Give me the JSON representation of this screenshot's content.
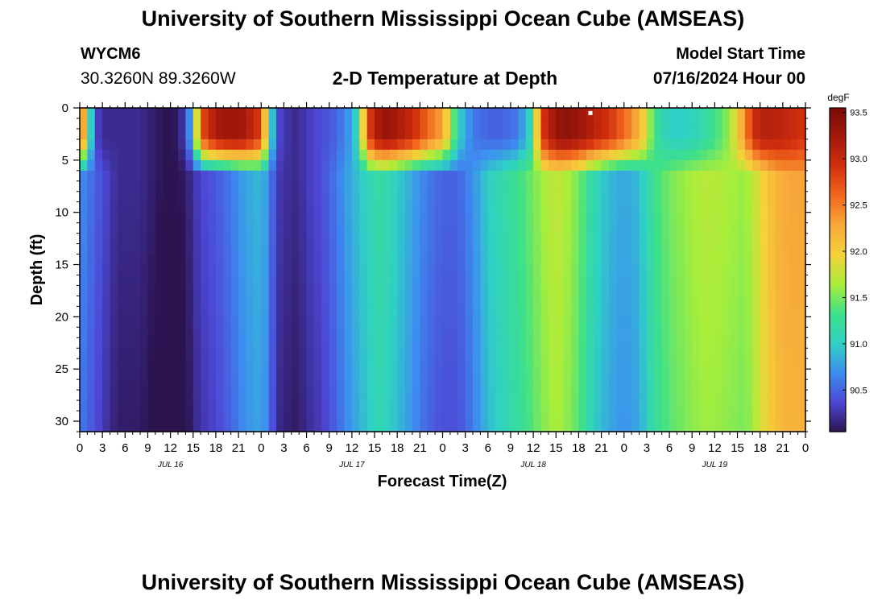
{
  "header": {
    "title": "University of Southern Mississippi Ocean Cube (AMSEAS)",
    "station": "WYCM6",
    "coordinates": "30.3260N  89.3260W",
    "subtitle": "2-D Temperature at Depth",
    "model_start_label": "Model Start Time",
    "model_start_value": "07/16/2024 Hour 00"
  },
  "footer": {
    "title": "University of Southern Mississippi Ocean Cube (AMSEAS)"
  },
  "chart_data": {
    "type": "heatmap",
    "xlabel": "Forecast Time(Z)",
    "ylabel": "Depth (ft)",
    "x_range_hours": [
      0,
      96
    ],
    "y_range_ft": [
      0,
      31
    ],
    "x_tick_labels": [
      "0",
      "3",
      "6",
      "9",
      "12",
      "15",
      "18",
      "21",
      "0",
      "3",
      "6",
      "9",
      "12",
      "15",
      "18",
      "21",
      "0",
      "3",
      "6",
      "9",
      "12",
      "15",
      "18",
      "21",
      "0",
      "3",
      "6",
      "9",
      "12",
      "15",
      "18",
      "21",
      "0"
    ],
    "y_ticks": [
      0,
      5,
      10,
      15,
      20,
      25,
      30
    ],
    "day_labels": [
      {
        "label": "JUL 16",
        "hour": 12
      },
      {
        "label": "JUL 17",
        "hour": 36
      },
      {
        "label": "JUL 18",
        "hour": 60
      },
      {
        "label": "JUL 19",
        "hour": 84
      }
    ],
    "colorbar": {
      "unit": "degF",
      "min": 90.05,
      "max": 93.55,
      "ticks": [
        "93.5",
        "93.0",
        "92.5",
        "92.0",
        "91.5",
        "91.0",
        "90.5"
      ],
      "colors": [
        "#2c1451",
        "#4d47d6",
        "#3d8ef0",
        "#2fd1c4",
        "#3ee089",
        "#a8ee3a",
        "#f5d13a",
        "#f7a93a",
        "#f2681e",
        "#d2300e",
        "#a4190b",
        "#7a0a07"
      ]
    },
    "temperature_profiles": {
      "times_h": [
        0,
        1,
        2,
        3,
        4,
        5,
        6,
        8,
        10,
        11,
        12,
        13,
        14,
        15,
        16,
        18,
        20,
        22,
        24,
        25,
        26,
        27,
        28,
        29,
        30,
        32,
        34,
        36,
        37,
        38,
        39,
        40,
        41,
        42,
        44,
        46,
        48,
        50,
        51,
        52,
        53,
        54,
        56,
        58,
        60,
        61,
        62,
        63,
        64,
        66,
        68,
        70,
        72,
        74,
        75,
        76,
        78,
        80,
        82,
        84,
        86,
        88,
        89,
        90,
        92,
        94,
        96
      ],
      "surface_degF": [
        92.9,
        91.6,
        90.4,
        90.2,
        90.2,
        90.2,
        90.2,
        90.2,
        90.1,
        90.05,
        90.05,
        90.1,
        90.35,
        91.0,
        92.7,
        93.2,
        93.3,
        93.2,
        92.8,
        91.4,
        90.4,
        90.3,
        90.2,
        90.2,
        90.3,
        90.4,
        90.5,
        90.8,
        91.2,
        92.7,
        93.1,
        93.3,
        93.3,
        93.2,
        93.0,
        92.6,
        92.3,
        91.1,
        90.8,
        90.6,
        90.55,
        90.5,
        90.5,
        90.6,
        91.2,
        92.8,
        93.1,
        93.3,
        93.4,
        93.3,
        93.1,
        92.9,
        92.6,
        92.2,
        91.8,
        91.3,
        91.0,
        91.0,
        91.1,
        91.3,
        91.6,
        92.4,
        92.9,
        93.1,
        93.1,
        93.0,
        92.9
      ],
      "mid_degF": [
        90.7,
        90.6,
        90.5,
        90.4,
        90.3,
        90.2,
        90.2,
        90.2,
        90.1,
        90.05,
        90.05,
        90.05,
        90.1,
        90.25,
        90.35,
        90.45,
        90.6,
        90.8,
        90.9,
        90.7,
        90.3,
        90.25,
        90.2,
        90.2,
        90.3,
        90.4,
        90.6,
        90.85,
        90.95,
        91.05,
        91.15,
        91.2,
        91.1,
        91.0,
        90.8,
        90.6,
        90.5,
        90.5,
        90.6,
        90.7,
        90.85,
        91.0,
        91.15,
        91.3,
        91.5,
        91.6,
        91.7,
        91.75,
        91.7,
        91.5,
        91.1,
        90.9,
        90.8,
        90.9,
        91.1,
        91.3,
        91.5,
        91.6,
        91.7,
        91.7,
        91.65,
        91.6,
        91.7,
        91.9,
        92.2,
        92.3,
        92.3
      ]
    },
    "markers": [
      {
        "hour": 67.5,
        "depth_ft": 0.3
      }
    ]
  }
}
